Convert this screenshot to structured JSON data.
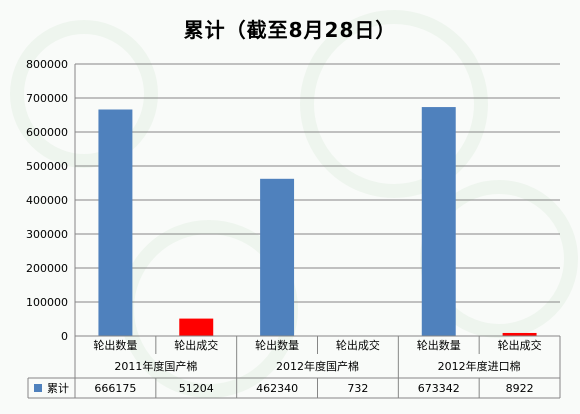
{
  "chart_data": {
    "type": "bar",
    "title": "累计（截至8月28日）",
    "categories": [
      "轮出数量",
      "轮出成交",
      "轮出数量",
      "轮出成交",
      "轮出数量",
      "轮出成交"
    ],
    "groups": [
      "2011年度国产棉",
      "2012年度国产棉",
      "2012年度进口棉"
    ],
    "series": [
      {
        "name": "累计",
        "values": [
          666175,
          51204,
          462340,
          732,
          673342,
          8922
        ]
      }
    ],
    "bar_colors": [
      "#4f81bd",
      "#ff0000",
      "#4f81bd",
      "#ff0000",
      "#4f81bd",
      "#ff0000"
    ],
    "legend_color": "#4f81bd",
    "ylim": [
      0,
      800000
    ],
    "yticks": [
      "800000",
      "700000",
      "600000",
      "500000",
      "400000",
      "300000",
      "200000",
      "100000",
      "0"
    ],
    "grid": true,
    "data_table": true,
    "table_values": [
      "666175",
      "51204",
      "462340",
      "732",
      "673342",
      "8922"
    ]
  }
}
